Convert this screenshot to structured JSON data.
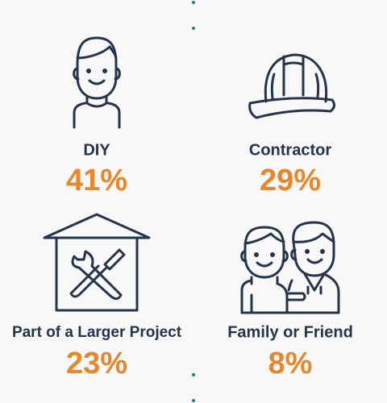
{
  "items": [
    {
      "label": "DIY",
      "value": "41%"
    },
    {
      "label": "Contractor",
      "value": "29%"
    },
    {
      "label": "Part of a Larger Project",
      "value": "23%"
    },
    {
      "label": "Family or Friend",
      "value": "8%"
    }
  ]
}
